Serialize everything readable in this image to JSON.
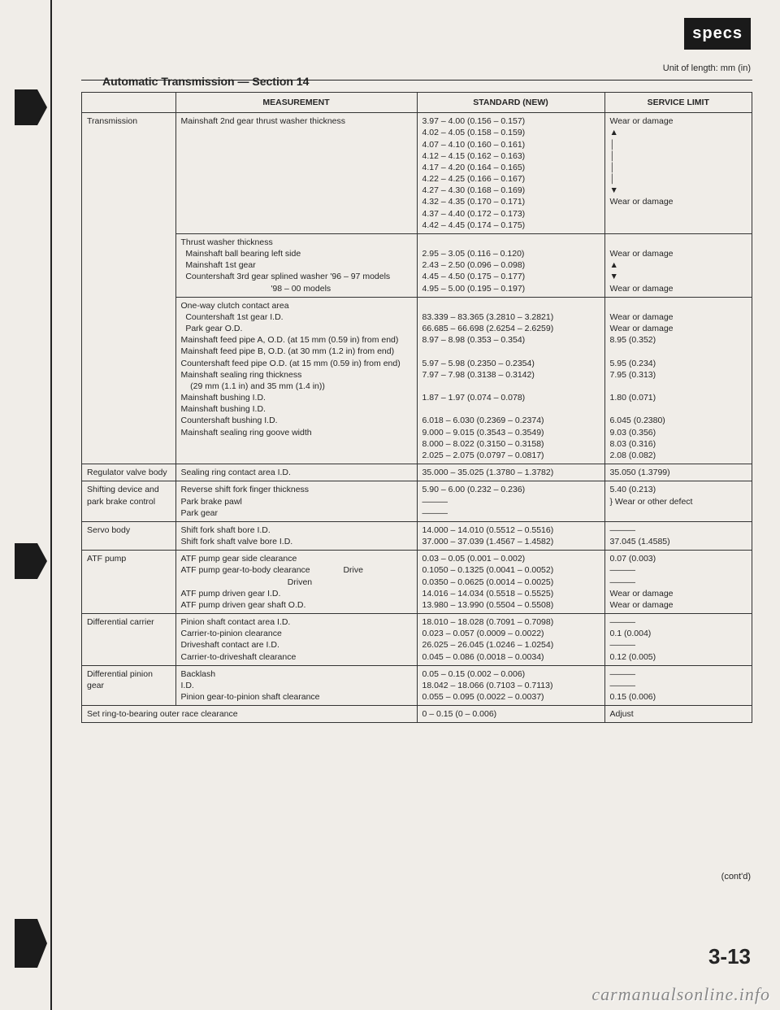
{
  "badge": "specs",
  "unit_text": "Unit of length: mm (in)",
  "section_title": "Automatic Transmission — Section 14",
  "headers": {
    "c1": "MEASUREMENT",
    "c2": "STANDARD (NEW)",
    "c3": "SERVICE LIMIT"
  },
  "rows": [
    {
      "group": "Transmission",
      "measurement": "Mainshaft 2nd gear thrust washer thickness",
      "standard": "3.97 – 4.00 (0.156 – 0.157)\n4.02 – 4.05 (0.158 – 0.159)\n4.07 – 4.10 (0.160 – 0.161)\n4.12 – 4.15 (0.162 – 0.163)\n4.17 – 4.20 (0.164 – 0.165)\n4.22 – 4.25 (0.166 – 0.167)\n4.27 – 4.30 (0.168 – 0.169)\n4.32 – 4.35 (0.170 – 0.171)\n4.37 – 4.40 (0.172 – 0.173)\n4.42 – 4.45 (0.174 – 0.175)",
      "service": "Wear or damage\n▲\n│\n│\n│\n│\n▼\nWear or damage"
    },
    {
      "measurement": "Thrust washer thickness\n  Mainshaft ball bearing left side\n  Mainshaft 1st gear\n  Countershaft 3rd gear splined washer '96 – 97 models\n                                      '98 – 00 models",
      "standard": "\n2.95 – 3.05 (0.116 – 0.120)\n2.43 – 2.50 (0.096 – 0.098)\n4.45 – 4.50 (0.175 – 0.177)\n4.95 – 5.00 (0.195 – 0.197)",
      "service": "\nWear or damage\n▲\n▼\nWear or damage"
    },
    {
      "measurement": "One-way clutch contact area\n  Countershaft 1st gear I.D.\n  Park gear O.D.\nMainshaft feed pipe A, O.D. (at 15 mm (0.59 in) from end)\nMainshaft feed pipe B, O.D. (at 30 mm (1.2 in) from end)\nCountershaft feed pipe O.D. (at 15 mm (0.59 in) from end)\nMainshaft sealing ring thickness\n    (29 mm (1.1 in) and 35 mm (1.4 in))\nMainshaft bushing I.D.\nMainshaft bushing I.D.\nCountershaft bushing I.D.\nMainshaft sealing ring goove width",
      "standard": "\n83.339 – 83.365 (3.2810 – 3.2821)\n66.685 – 66.698 (2.6254 – 2.6259)\n8.97 – 8.98 (0.353 – 0.354)\n\n5.97 – 5.98 (0.2350 – 0.2354)\n7.97 – 7.98 (0.3138 – 0.3142)\n\n1.87 – 1.97 (0.074 – 0.078)\n\n6.018 – 6.030 (0.2369 – 0.2374)\n9.000 – 9.015 (0.3543 – 0.3549)\n8.000 – 8.022 (0.3150 – 0.3158)\n2.025 – 2.075 (0.0797 – 0.0817)",
      "service": "\nWear or damage\nWear or damage\n8.95 (0.352)\n\n5.95 (0.234)\n7.95 (0.313)\n\n1.80 (0.071)\n\n6.045 (0.2380)\n9.03 (0.356)\n8.03 (0.316)\n2.08 (0.082)"
    },
    {
      "group": "Regulator valve body",
      "measurement": "Sealing ring contact area I.D.",
      "standard": "35.000 – 35.025 (1.3780 – 1.3782)",
      "service": "35.050 (1.3799)"
    },
    {
      "group": "Shifting device and park brake control",
      "measurement": "Reverse shift fork finger thickness\nPark brake pawl\nPark gear",
      "standard": "5.90 – 6.00 (0.232 – 0.236)\n———\n———",
      "service": "5.40 (0.213)\n} Wear or other defect"
    },
    {
      "group": "Servo body",
      "measurement": "Shift fork shaft bore I.D.\nShift fork shaft valve bore I.D.",
      "standard": "14.000 – 14.010 (0.5512 – 0.5516)\n37.000 – 37.039 (1.4567 – 1.4582)",
      "service": "———\n37.045 (1.4585)"
    },
    {
      "group": "ATF pump",
      "measurement": "ATF pump gear side clearance\nATF pump gear-to-body clearance              Drive\n                                             Driven\nATF pump driven gear I.D.\nATF pump driven gear shaft O.D.",
      "standard": "0.03 – 0.05 (0.001 – 0.002)\n0.1050 – 0.1325 (0.0041 – 0.0052)\n0.0350 – 0.0625 (0.0014 – 0.0025)\n14.016 – 14.034 (0.5518 – 0.5525)\n13.980 – 13.990 (0.5504 – 0.5508)",
      "service": "0.07 (0.003)\n———\n———\nWear or damage\nWear or damage"
    },
    {
      "group": "Differential carrier",
      "measurement": "Pinion shaft contact area I.D.\nCarrier-to-pinion clearance\nDriveshaft contact are I.D.\nCarrier-to-driveshaft clearance",
      "standard": "18.010 – 18.028 (0.7091 – 0.7098)\n0.023 – 0.057 (0.0009 – 0.0022)\n26.025 – 26.045 (1.0246 – 1.0254)\n0.045 – 0.086 (0.0018 – 0.0034)",
      "service": "———\n0.1 (0.004)\n———\n0.12 (0.005)"
    },
    {
      "group": "Differential pinion gear",
      "measurement": "Backlash\nI.D.\nPinion gear-to-pinion shaft clearance",
      "standard": "0.05 – 0.15 (0.002 – 0.006)\n18.042 – 18.066 (0.7103 – 0.7113)\n0.055 – 0.095 (0.0022 – 0.0037)",
      "service": "———\n———\n0.15 (0.006)"
    },
    {
      "group_span": "Set ring-to-bearing outer race clearance",
      "standard": "0 – 0.15 (0 – 0.006)",
      "service": "Adjust"
    }
  ],
  "contd": "(cont'd)",
  "page_num": "3-13",
  "watermark": "carmanualsonline.info"
}
